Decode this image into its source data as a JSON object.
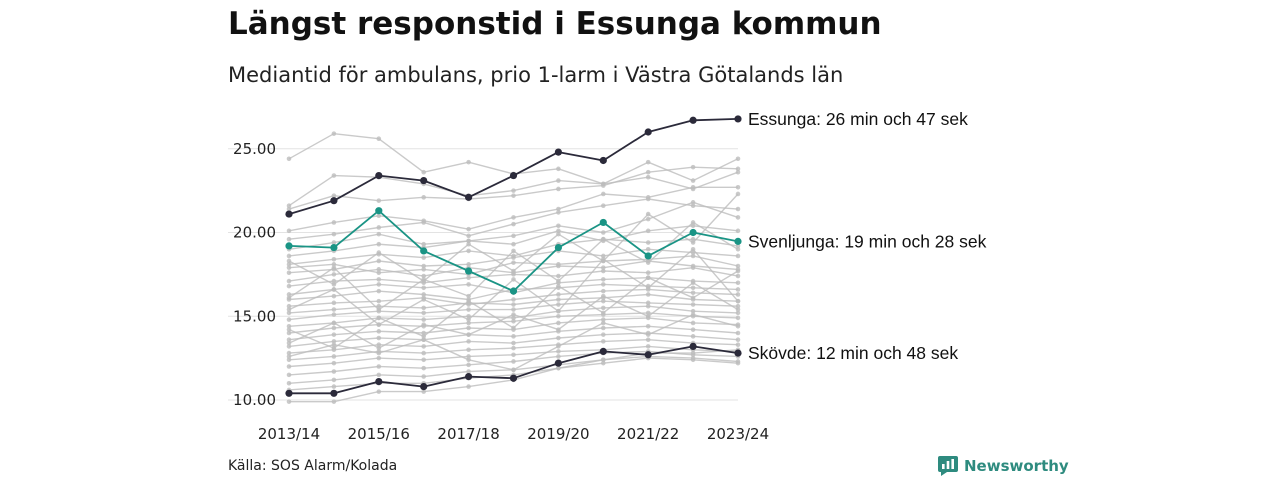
{
  "header": {
    "title": "Längst responstid i Essunga kommun",
    "subtitle": "Mediantid för ambulans, prio 1-larm i Västra Götalands län"
  },
  "footer": {
    "source": "Källa: SOS Alarm/Kolada",
    "brand": "Newsworthy"
  },
  "colors": {
    "highlight_dark": "#2b2a3a",
    "highlight_teal": "#1a9485",
    "background_series": "#bdbdbd",
    "grid": "#e3e3e3",
    "brand": "#2e8b7f"
  },
  "chart_data": {
    "type": "line",
    "x": [
      "2013/14",
      "2014/15",
      "2015/16",
      "2016/17",
      "2017/18",
      "2018/19",
      "2019/20",
      "2020/21",
      "2021/22",
      "2022/23",
      "2023/24"
    ],
    "x_tick_labels": [
      "2013/14",
      "2015/16",
      "2017/18",
      "2019/20",
      "2021/22",
      "2023/24"
    ],
    "y_ticks": [
      "10.00",
      "15.00",
      "20.00",
      "25.00"
    ],
    "ylim": [
      9.5,
      27.5
    ],
    "grid": "horizontal",
    "series": [
      {
        "name": "Essunga",
        "label": "Essunga: 26 min och 47 sek",
        "color": "#2b2a3a",
        "highlight": true,
        "values": [
          21.1,
          21.9,
          23.4,
          23.1,
          22.1,
          23.4,
          24.8,
          24.3,
          26.0,
          26.7,
          26.78
        ]
      },
      {
        "name": "Svenljunga",
        "label": "Svenljunga: 19 min och 28 sek",
        "color": "#1a9485",
        "highlight": true,
        "values": [
          19.2,
          19.1,
          21.3,
          18.9,
          17.7,
          16.5,
          19.1,
          20.6,
          18.6,
          20.0,
          19.47
        ]
      },
      {
        "name": "Skövde",
        "label": "Skövde: 12 min och 48 sek",
        "color": "#2b2a3a",
        "highlight": true,
        "values": [
          10.4,
          10.4,
          11.1,
          10.8,
          11.4,
          11.3,
          12.2,
          12.9,
          12.7,
          13.2,
          12.8
        ]
      },
      {
        "values": [
          24.4,
          25.9,
          25.6,
          23.6,
          24.2,
          23.5,
          23.8,
          22.9,
          24.2,
          23.1,
          24.4
        ]
      },
      {
        "values": [
          21.6,
          23.4,
          23.3,
          22.9,
          22.2,
          22.5,
          23.1,
          22.9,
          23.3,
          22.6,
          23.6
        ]
      },
      {
        "values": [
          21.4,
          22.2,
          21.9,
          22.1,
          22.0,
          22.2,
          22.6,
          22.8,
          23.6,
          23.9,
          23.8
        ]
      },
      {
        "values": [
          20.1,
          20.6,
          21.0,
          20.7,
          20.2,
          20.9,
          21.4,
          22.3,
          22.1,
          22.7,
          22.7
        ]
      },
      {
        "values": [
          19.6,
          19.9,
          20.3,
          20.6,
          19.8,
          20.5,
          21.2,
          21.6,
          22.0,
          21.6,
          21.4
        ]
      },
      {
        "values": [
          19.0,
          19.4,
          19.9,
          19.3,
          19.5,
          19.8,
          20.4,
          20.0,
          20.8,
          21.8,
          20.9
        ]
      },
      {
        "values": [
          18.6,
          18.9,
          19.3,
          19.1,
          19.5,
          19.3,
          20.1,
          19.5,
          20.1,
          20.4,
          20.1
        ]
      },
      {
        "values": [
          18.1,
          18.4,
          18.7,
          18.5,
          18.9,
          18.6,
          19.3,
          19.6,
          19.4,
          19.6,
          19.2
        ]
      },
      {
        "values": [
          17.6,
          17.8,
          18.3,
          18.0,
          18.1,
          18.5,
          18.9,
          18.6,
          19.0,
          18.8,
          18.6
        ]
      },
      {
        "values": [
          17.9,
          18.1,
          17.6,
          17.8,
          17.5,
          18.2,
          18.1,
          18.3,
          18.4,
          18.6,
          18.0
        ]
      },
      {
        "values": [
          17.1,
          17.5,
          17.8,
          17.4,
          17.9,
          17.6,
          18.0,
          17.9,
          18.3,
          18.0,
          17.8
        ]
      },
      {
        "values": [
          16.8,
          17.1,
          17.2,
          17.0,
          17.3,
          17.5,
          17.4,
          17.7,
          17.6,
          17.9,
          17.4
        ]
      },
      {
        "values": [
          16.3,
          16.6,
          16.9,
          16.7,
          16.9,
          16.4,
          17.0,
          17.2,
          17.3,
          17.1,
          17.0
        ]
      },
      {
        "values": [
          16.0,
          16.2,
          16.5,
          16.3,
          16.0,
          16.6,
          16.7,
          16.9,
          16.8,
          16.7,
          16.6
        ]
      },
      {
        "values": [
          15.6,
          15.8,
          15.9,
          16.1,
          15.7,
          16.0,
          16.3,
          16.5,
          16.6,
          16.4,
          16.3
        ]
      },
      {
        "values": [
          15.2,
          15.4,
          15.6,
          15.5,
          15.8,
          15.7,
          16.0,
          16.1,
          16.3,
          16.0,
          15.9
        ]
      },
      {
        "values": [
          14.8,
          15.1,
          15.3,
          15.2,
          15.4,
          15.4,
          15.7,
          15.9,
          15.8,
          15.7,
          15.6
        ]
      },
      {
        "values": [
          14.4,
          14.6,
          14.9,
          14.8,
          15.0,
          14.9,
          15.3,
          15.5,
          15.6,
          15.3,
          15.2
        ]
      },
      {
        "values": [
          14.0,
          14.3,
          14.5,
          14.4,
          14.6,
          14.7,
          15.0,
          15.1,
          15.2,
          15.0,
          14.9
        ]
      },
      {
        "values": [
          13.6,
          13.9,
          14.1,
          14.0,
          14.3,
          14.2,
          14.6,
          14.8,
          14.9,
          14.6,
          14.5
        ]
      },
      {
        "values": [
          13.2,
          13.5,
          13.7,
          13.6,
          13.9,
          13.8,
          14.1,
          14.3,
          14.4,
          14.2,
          14.0
        ]
      },
      {
        "values": [
          12.8,
          13.0,
          13.3,
          13.2,
          13.5,
          13.4,
          13.7,
          13.9,
          14.0,
          13.8,
          13.6
        ]
      },
      {
        "values": [
          12.4,
          12.6,
          12.9,
          12.8,
          13.0,
          13.1,
          13.3,
          13.5,
          13.6,
          13.4,
          13.3
        ]
      },
      {
        "values": [
          12.0,
          12.2,
          12.5,
          12.4,
          12.6,
          12.7,
          12.9,
          13.0,
          13.2,
          13.0,
          12.9
        ]
      },
      {
        "values": [
          11.5,
          11.7,
          12.0,
          11.9,
          12.1,
          12.3,
          12.6,
          12.8,
          12.9,
          12.7,
          12.6
        ]
      },
      {
        "values": [
          11.0,
          11.2,
          11.5,
          11.4,
          11.7,
          11.8,
          12.1,
          12.4,
          12.6,
          12.5,
          12.3
        ]
      },
      {
        "values": [
          10.6,
          10.8,
          11.0,
          11.0,
          11.3,
          11.5,
          11.9,
          12.2,
          12.5,
          12.4,
          12.2
        ]
      },
      {
        "values": [
          9.9,
          9.9,
          10.5,
          10.5,
          10.8,
          11.2,
          11.9,
          12.4,
          12.8,
          12.8,
          13.0
        ]
      },
      {
        "values": [
          12.6,
          13.3,
          12.8,
          13.6,
          12.4,
          11.8,
          13.2,
          14.6,
          13.9,
          15.1,
          14.4
        ]
      },
      {
        "values": [
          14.2,
          13.1,
          14.9,
          13.8,
          15.9,
          14.3,
          16.8,
          15.2,
          17.3,
          16.1,
          17.7
        ]
      },
      {
        "values": [
          16.1,
          17.9,
          15.4,
          17.2,
          16.2,
          18.9,
          17.1,
          19.6,
          18.2,
          20.6,
          19.0
        ]
      },
      {
        "values": [
          18.3,
          16.9,
          18.8,
          17.1,
          19.3,
          17.7,
          19.9,
          18.3,
          21.1,
          19.4,
          22.3
        ]
      },
      {
        "values": [
          15.4,
          16.6,
          14.5,
          16.0,
          14.8,
          17.2,
          15.3,
          18.4,
          16.7,
          19.0,
          15.9
        ]
      },
      {
        "values": [
          13.4,
          14.6,
          13.1,
          14.5,
          13.9,
          15.1,
          14.2,
          16.2,
          15.0,
          17.0,
          15.4
        ]
      }
    ]
  }
}
